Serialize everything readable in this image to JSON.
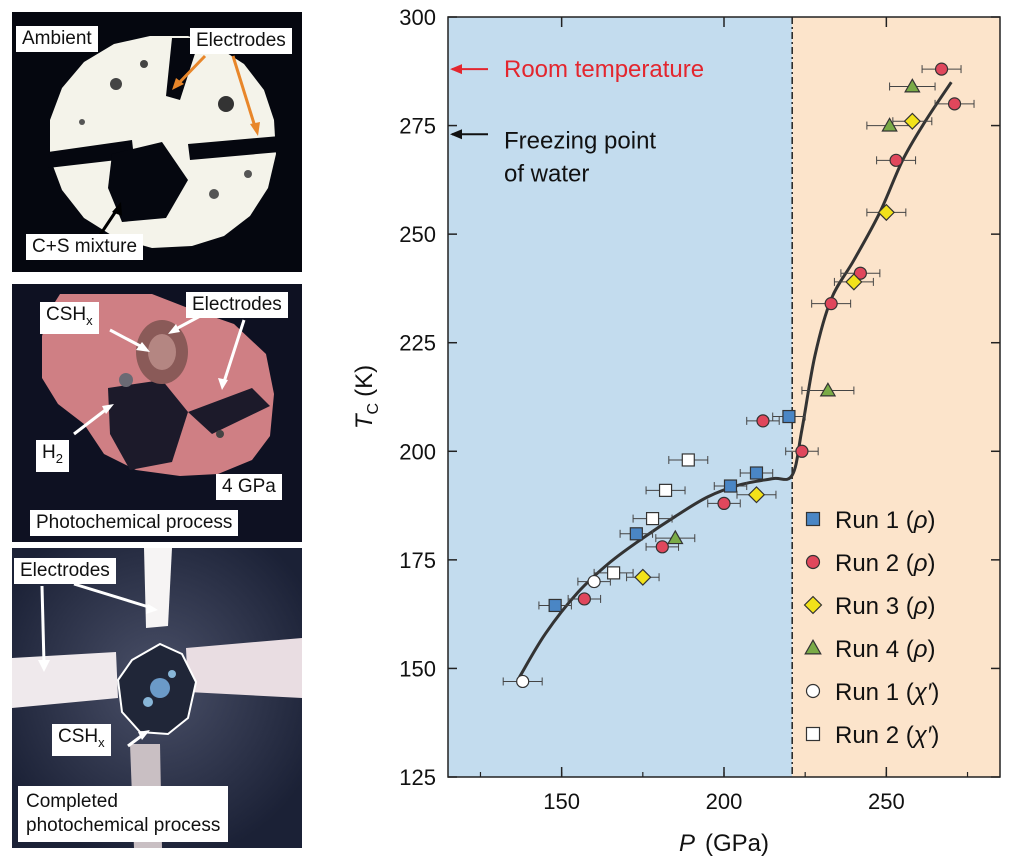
{
  "panels": {
    "top": {
      "ambient": "Ambient",
      "electrodes": "Electrodes",
      "mixture": "C+S mixture"
    },
    "middle": {
      "csh_main": "CSH",
      "csh_sub": "x",
      "electrodes": "Electrodes",
      "h_main": "H",
      "h_sub": "2",
      "pressure": "4 GPa",
      "process": "Photochemical process"
    },
    "bottom": {
      "electrodes": "Electrodes",
      "csh_main": "CSH",
      "csh_sub": "x",
      "completed_line1": "Completed",
      "completed_line2": "photochemical process"
    }
  },
  "colors": {
    "low_region": "#c3dcee",
    "high_region": "#fce4cb",
    "run1_rho": "#4a86c5",
    "run2_rho": "#e0475c",
    "run3_rho": "#f2e21a",
    "run4_rho": "#7aab47",
    "room_temp": "#e3262e"
  },
  "chart_data": {
    "type": "scatter",
    "xlabel_main": "P",
    "xlabel_unit": "(GPa)",
    "ylabel_main": "T",
    "ylabel_sub": "C",
    "ylabel_unit": "(K)",
    "xlim": [
      115,
      285
    ],
    "ylim": [
      125,
      300
    ],
    "xticks": [
      150,
      200,
      250
    ],
    "yticks": [
      125,
      150,
      175,
      200,
      225,
      250,
      275,
      300
    ],
    "boundary_x": 221,
    "grid": false,
    "legend_position": "bottom-right",
    "annotations": {
      "room_temperature": {
        "text": "Room temperature",
        "y": 288
      },
      "freezing_point": {
        "line1": "Freezing point",
        "line2": "of water",
        "y": 273
      }
    },
    "series": [
      {
        "name": "Run 1 (ρ)",
        "legend_main": "Run 1 (",
        "legend_sym": "ρ",
        "marker": "square",
        "fill": "#4a86c5",
        "points": [
          [
            148,
            164.5,
            5
          ],
          [
            173,
            181,
            5
          ],
          [
            202,
            192,
            5
          ],
          [
            210,
            195,
            5
          ],
          [
            220,
            208,
            5
          ]
        ]
      },
      {
        "name": "Run 2 (ρ)",
        "legend_main": "Run 2 (",
        "legend_sym": "ρ",
        "marker": "circle",
        "fill": "#e0475c",
        "points": [
          [
            157,
            166,
            5
          ],
          [
            181,
            178,
            5
          ],
          [
            200,
            188,
            5
          ],
          [
            212,
            207,
            5
          ],
          [
            224,
            200,
            5
          ],
          [
            233,
            234,
            6
          ],
          [
            242,
            241,
            6
          ],
          [
            253,
            267,
            6
          ],
          [
            267,
            288,
            6
          ],
          [
            271,
            280,
            6
          ]
        ]
      },
      {
        "name": "Run 3 (ρ)",
        "legend_main": "Run 3 (",
        "legend_sym": "ρ",
        "marker": "diamond",
        "fill": "#f2e21a",
        "points": [
          [
            175,
            171,
            5
          ],
          [
            210,
            190,
            6
          ],
          [
            240,
            239,
            6
          ],
          [
            250,
            255,
            6
          ],
          [
            258,
            276,
            6
          ]
        ]
      },
      {
        "name": "Run 4 (ρ)",
        "legend_main": "Run 4 (",
        "legend_sym": "ρ",
        "marker": "triangle",
        "fill": "#7aab47",
        "points": [
          [
            185,
            180,
            6
          ],
          [
            232,
            214,
            8
          ],
          [
            251,
            275,
            7
          ],
          [
            258,
            284,
            7
          ]
        ]
      },
      {
        "name": "Run 1 (χ′)",
        "legend_main": "Run 1 (",
        "legend_sym": "χ′",
        "marker": "circle",
        "fill": "#ffffff",
        "points": [
          [
            138,
            147,
            6
          ],
          [
            160,
            170,
            5
          ]
        ]
      },
      {
        "name": "Run 2 (χ′)",
        "legend_main": "Run 2 (",
        "legend_sym": "χ′",
        "marker": "square",
        "fill": "#ffffff",
        "points": [
          [
            166,
            172,
            6
          ],
          [
            178,
            184.5,
            6
          ],
          [
            182,
            191,
            6
          ],
          [
            189,
            198,
            6
          ]
        ]
      }
    ],
    "fit_curve": [
      [
        137,
        148
      ],
      [
        145,
        158
      ],
      [
        155,
        167.5
      ],
      [
        165,
        174.5
      ],
      [
        175,
        180
      ],
      [
        185,
        185
      ],
      [
        195,
        189.5
      ],
      [
        205,
        192.3
      ],
      [
        215,
        193.7
      ],
      [
        221,
        194.5
      ],
      [
        224,
        205
      ],
      [
        228,
        222
      ],
      [
        233,
        235
      ],
      [
        240,
        244
      ],
      [
        248,
        255
      ],
      [
        255,
        267
      ],
      [
        262,
        276
      ],
      [
        270,
        285
      ]
    ]
  }
}
